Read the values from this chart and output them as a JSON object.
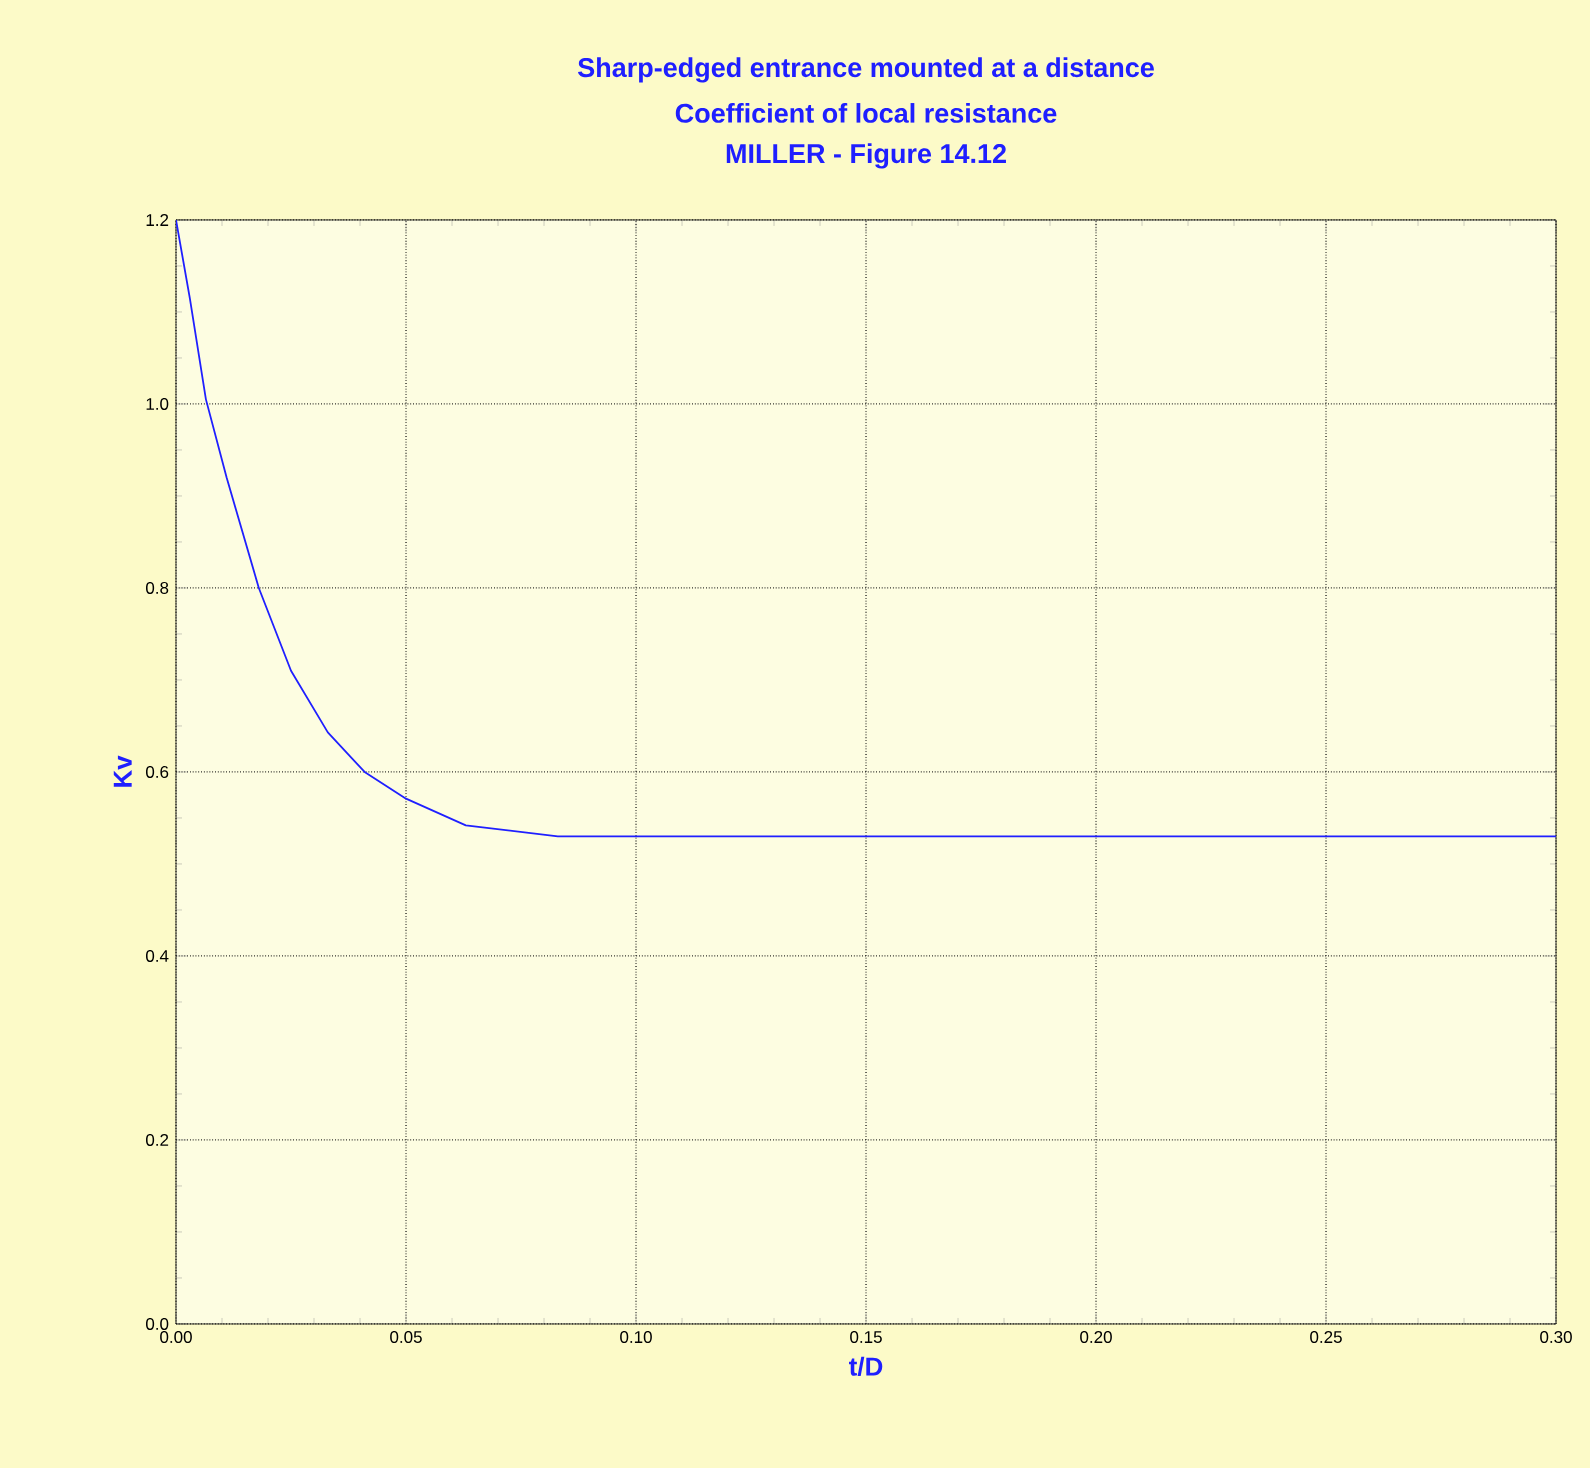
{
  "chart_data": {
    "type": "line",
    "title": "Sharp-edged entrance mounted at a distance",
    "subtitle": "Coefficient of local resistance",
    "annotations": [
      "MILLER - Figure 14.12"
    ],
    "xlabel": "t/D",
    "ylabel": "Kv",
    "x": [
      0,
      0.003,
      0.0065,
      0.011,
      0.018,
      0.025,
      0.033,
      0.041,
      0.05,
      0.063,
      0.083,
      0.3
    ],
    "series": [
      {
        "color": "#1f1fff",
        "values": [
          1.2,
          1.115,
          1.005,
          0.92,
          0.8,
          0.71,
          0.643,
          0.6,
          0.571,
          0.542,
          0.53,
          0.53
        ]
      }
    ],
    "xlim": [
      0,
      0.3
    ],
    "ylim": [
      0,
      1.2
    ],
    "xticks": [
      {
        "value": 0,
        "label": "0.00"
      },
      0.05,
      {
        "value": 0.1,
        "label": "0.10"
      },
      0.15,
      {
        "value": 0.2,
        "label": "0.20"
      },
      0.25,
      {
        "value": 0.3,
        "label": "0.30"
      }
    ],
    "yticks": [
      {
        "value": 0,
        "label": "0.0"
      },
      0.2,
      0.4,
      0.6,
      0.8,
      {
        "value": 1,
        "label": "1.0"
      },
      1.2
    ],
    "grid": true,
    "marker": "none",
    "line_style": "solid"
  }
}
